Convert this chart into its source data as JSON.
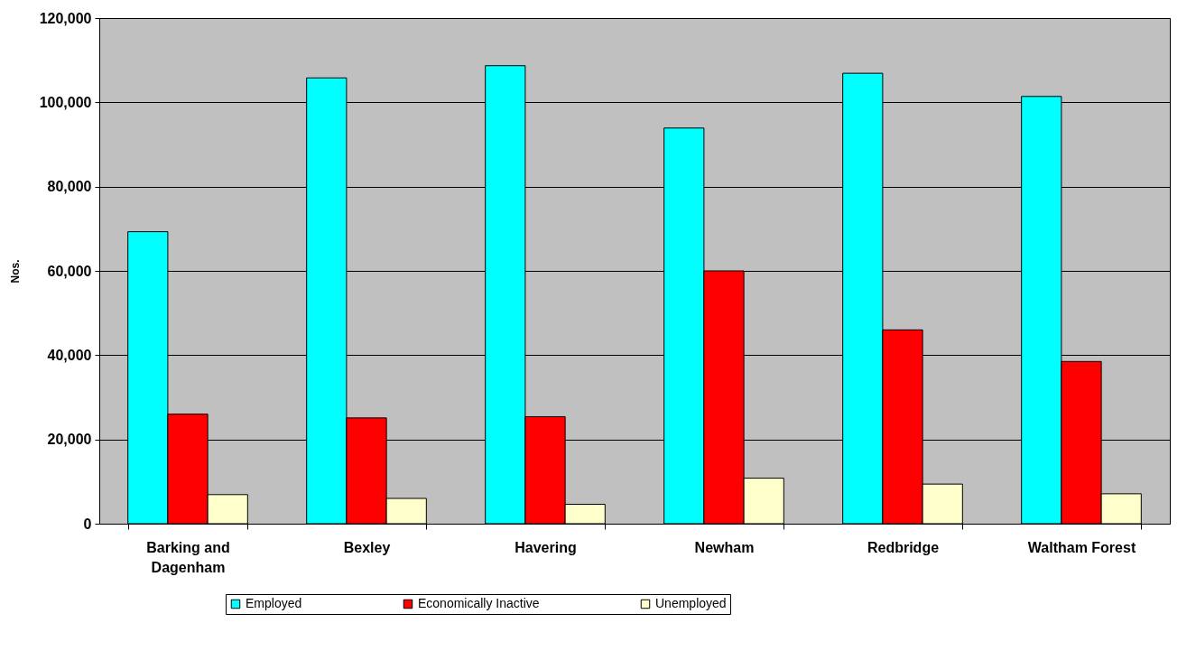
{
  "chart_data": {
    "type": "bar",
    "ylabel": "Nos.",
    "categories": [
      "Barking and Dagenham",
      "Bexley",
      "Havering",
      "Newham",
      "Redbridge",
      "Waltham Forest"
    ],
    "series": [
      {
        "name": "Employed",
        "color": "#00ffff",
        "values": [
          69300,
          105800,
          108700,
          93900,
          106900,
          101400
        ]
      },
      {
        "name": "Economically Inactive",
        "color": "#ff0000",
        "values": [
          26000,
          25100,
          25400,
          60000,
          46000,
          38500
        ]
      },
      {
        "name": "Unemployed",
        "color": "#ffffcc",
        "values": [
          6900,
          6000,
          4600,
          10800,
          9400,
          7100
        ]
      }
    ],
    "ylim": [
      0,
      120000
    ],
    "yticks": [
      0,
      {
        "value": 20000,
        "label": "20,000"
      },
      {
        "value": 40000,
        "label": "40,000"
      },
      {
        "value": 60000,
        "label": "60,000"
      },
      {
        "value": 80000,
        "label": "80,000"
      },
      {
        "value": 100000,
        "label": "100,000"
      },
      {
        "value": 120000,
        "label": "120,000"
      }
    ],
    "grid": "y",
    "legend": "bottom"
  }
}
